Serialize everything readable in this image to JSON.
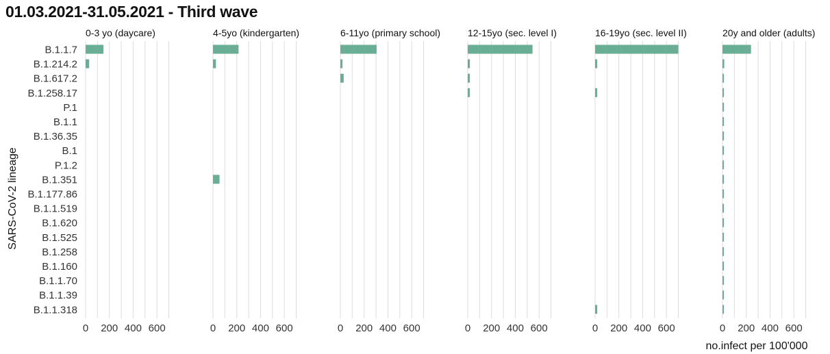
{
  "chart_data": {
    "type": "bar",
    "orientation": "horizontal",
    "title": "01.03.2021-31.05.2021 - Third wave",
    "ylabel": "SARS-CoV-2 lineage",
    "xlabel": "no.infect per 100'000",
    "bar_color": "#6aae96",
    "grid_color": "#dcdcdc",
    "grid": true,
    "xlim": [
      0,
      720
    ],
    "xticks": [
      0,
      200,
      400,
      600
    ],
    "gridlines": [
      0,
      100,
      200,
      300,
      400,
      500,
      600,
      700
    ],
    "categories": [
      "B.1.1.7",
      "B.1.214.2",
      "B.1.617.2",
      "B.1.258.17",
      "P.1",
      "B.1.1",
      "B.1.36.35",
      "B.1",
      "P.1.2",
      "B.1.351",
      "B.1.177.86",
      "B.1.1.519",
      "B.1.620",
      "B.1.525",
      "B.1.258",
      "B.1.160",
      "B.1.1.70",
      "B.1.1.39",
      "B.1.1.318"
    ],
    "series": [
      {
        "name": "0-3 yo (daycare)",
        "values": [
          150,
          30,
          0,
          0,
          0,
          0,
          0,
          0,
          0,
          0,
          0,
          0,
          0,
          0,
          0,
          0,
          0,
          0,
          0
        ]
      },
      {
        "name": "4-5yo (kindergarten)",
        "values": [
          215,
          25,
          0,
          0,
          0,
          0,
          0,
          0,
          0,
          55,
          0,
          0,
          0,
          0,
          0,
          0,
          0,
          0,
          0
        ]
      },
      {
        "name": "6-11yo (primary school)",
        "values": [
          305,
          18,
          28,
          0,
          0,
          0,
          0,
          0,
          0,
          0,
          0,
          0,
          0,
          0,
          0,
          0,
          0,
          0,
          0
        ]
      },
      {
        "name": "12-15yo (sec. level I)",
        "values": [
          545,
          18,
          18,
          18,
          0,
          0,
          0,
          0,
          0,
          0,
          0,
          0,
          0,
          0,
          0,
          0,
          0,
          0,
          0
        ]
      },
      {
        "name": "16-19yo (sec. level II)",
        "values": [
          700,
          18,
          0,
          18,
          0,
          0,
          0,
          0,
          0,
          0,
          0,
          0,
          0,
          0,
          0,
          0,
          0,
          0,
          18
        ]
      },
      {
        "name": "20y and older (adults)",
        "values": [
          240,
          15,
          8,
          6,
          4,
          3,
          3,
          3,
          2,
          3,
          2,
          2,
          2,
          2,
          2,
          2,
          2,
          2,
          2
        ]
      }
    ]
  }
}
